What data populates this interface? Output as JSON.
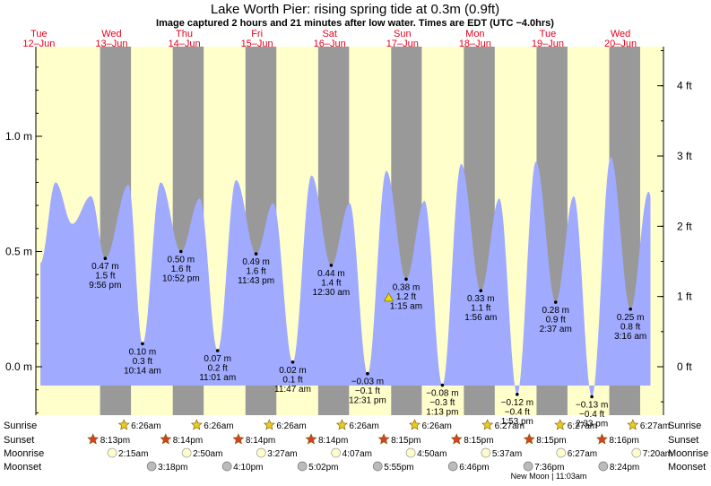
{
  "chart_data": {
    "type": "area",
    "title": "Lake Worth Pier: rising  spring tide at 0.3m (0.9ft)",
    "subtitle": "Image captured 2 hours and 21 minutes after low water. Times are EDT (UTC −4.0hrs)",
    "y_unit_left": "m",
    "y_unit_right": "ft",
    "ylim_m": [
      -0.4,
      1.37
    ],
    "left_ticks": [
      "0.0 m",
      "0.5 m",
      "1.0 m"
    ],
    "left_tick_values": [
      0,
      0.5,
      1.0
    ],
    "right_ticks": [
      "0 ft",
      "1 ft",
      "2 ft",
      "3 ft",
      "4 ft"
    ],
    "right_tick_values": [
      0,
      1,
      2,
      3,
      4
    ],
    "days": [
      {
        "dow": "Tue",
        "date": "12–Jun"
      },
      {
        "dow": "Wed",
        "date": "13–Jun"
      },
      {
        "dow": "Thu",
        "date": "14–Jun"
      },
      {
        "dow": "Fri",
        "date": "15–Jun"
      },
      {
        "dow": "Sat",
        "date": "16–Jun"
      },
      {
        "dow": "Sun",
        "date": "17–Jun"
      },
      {
        "dow": "Mon",
        "date": "18–Jun"
      },
      {
        "dow": "Tue",
        "date": "19–Jun"
      },
      {
        "dow": "Wed",
        "date": "20–Jun"
      }
    ],
    "x_range_hours_from_12jun_midnight": [
      -1.0,
      206.2
    ],
    "night_bands_hours": [
      [
        20.2,
        30.4
      ],
      [
        44.2,
        54.4
      ],
      [
        68.2,
        78.4
      ],
      [
        92.2,
        102.4
      ],
      [
        116.3,
        126.4
      ],
      [
        140.3,
        150.5
      ],
      [
        164.3,
        174.5
      ],
      [
        188.3,
        198.5
      ]
    ],
    "tide_extremes": [
      {
        "t": 5.5,
        "h": 0.8
      },
      {
        "t": 11.0,
        "h": 0.62
      },
      {
        "t": 17.2,
        "h": 0.74
      },
      {
        "t": 21.9,
        "h": 0.47,
        "label": [
          "0.47 m",
          "1.5 ft",
          "9:56 pm"
        ]
      },
      {
        "t": 29.6,
        "h": 0.79
      },
      {
        "t": 34.2,
        "h": 0.1,
        "label": [
          "0.10 m",
          "0.3 ft",
          "10:14 am"
        ]
      },
      {
        "t": 40.2,
        "h": 0.8
      },
      {
        "t": 46.9,
        "h": 0.5,
        "label": [
          "0.50 m",
          "1.6 ft",
          "10:52 pm"
        ]
      },
      {
        "t": 53.1,
        "h": 0.73
      },
      {
        "t": 59.0,
        "h": 0.07,
        "label": [
          "0.07 m",
          "0.2 ft",
          "11:01 am"
        ]
      },
      {
        "t": 65.1,
        "h": 0.81
      },
      {
        "t": 71.7,
        "h": 0.49,
        "label": [
          "0.49 m",
          "1.6 ft",
          "11:43 pm"
        ]
      },
      {
        "t": 77.4,
        "h": 0.71
      },
      {
        "t": 83.8,
        "h": 0.02,
        "label": [
          "0.02 m",
          "0.1 ft",
          "11:47 am"
        ]
      },
      {
        "t": 90.0,
        "h": 0.83
      },
      {
        "t": 96.5,
        "h": 0.44,
        "label": [
          "0.44 m",
          "1.4 ft",
          "12:30 am"
        ]
      },
      {
        "t": 102.6,
        "h": 0.71
      },
      {
        "t": 108.5,
        "h": -0.03,
        "label": [
          "−0.03 m",
          "−0.1 ft",
          "12:31 pm"
        ]
      },
      {
        "t": 114.7,
        "h": 0.85
      },
      {
        "t": 121.25,
        "h": 0.38,
        "label": [
          "0.38 m",
          "1.2 ft",
          "1:15 am"
        ]
      },
      {
        "t": 127.3,
        "h": 0.72
      },
      {
        "t": 133.2,
        "h": -0.08,
        "label": [
          "−0.08 m",
          "−0.3 ft",
          "1:13 pm"
        ]
      },
      {
        "t": 139.4,
        "h": 0.88
      },
      {
        "t": 145.9,
        "h": 0.33,
        "label": [
          "0.33 m",
          "1.1 ft",
          "1:56 am"
        ]
      },
      {
        "t": 152.0,
        "h": 0.73
      },
      {
        "t": 157.9,
        "h": -0.12,
        "label": [
          "−0.12 m",
          "−0.4 ft",
          "1:53 pm"
        ]
      },
      {
        "t": 164.1,
        "h": 0.89
      },
      {
        "t": 170.6,
        "h": 0.28,
        "label": [
          "0.28 m",
          "0.9 ft",
          "2:37 am"
        ]
      },
      {
        "t": 176.6,
        "h": 0.74
      },
      {
        "t": 182.55,
        "h": -0.13,
        "label": [
          "−0.13 m",
          "−0.4 ft",
          "2:33 pm"
        ]
      },
      {
        "t": 188.8,
        "h": 0.91
      },
      {
        "t": 195.3,
        "h": 0.25,
        "label": [
          "0.25 m",
          "0.8 ft",
          "3:16 am"
        ]
      },
      {
        "t": 201.3,
        "h": 0.76
      },
      {
        "t": 207.3,
        "h": -0.15
      }
    ],
    "tide_start": {
      "t": 0.5,
      "h": 0.45
    },
    "tide_end_t": 201.9,
    "current_marker": {
      "t": 115.5,
      "h": 0.3
    }
  },
  "almanac": {
    "row_labels": [
      "Sunrise",
      "Sunset",
      "Moonrise",
      "Moonset"
    ],
    "sunrise": [
      {
        "t": 30.43,
        "text": "6:26am"
      },
      {
        "t": 54.43,
        "text": "6:26am"
      },
      {
        "t": 78.43,
        "text": "6:26am"
      },
      {
        "t": 102.43,
        "text": "6:26am"
      },
      {
        "t": 126.43,
        "text": "6:26am"
      },
      {
        "t": 150.45,
        "text": "6:27am"
      },
      {
        "t": 174.45,
        "text": "6:27am"
      },
      {
        "t": 198.45,
        "text": "6:27am"
      }
    ],
    "sunset": [
      {
        "t": 20.22,
        "text": "8:13pm"
      },
      {
        "t": 44.23,
        "text": "8:14pm"
      },
      {
        "t": 68.23,
        "text": "8:14pm"
      },
      {
        "t": 92.23,
        "text": "8:14pm"
      },
      {
        "t": 116.25,
        "text": "8:15pm"
      },
      {
        "t": 140.25,
        "text": "8:15pm"
      },
      {
        "t": 164.25,
        "text": "8:15pm"
      },
      {
        "t": 188.27,
        "text": "8:16pm"
      }
    ],
    "moonrise": [
      {
        "t": 26.25,
        "text": "2:15am"
      },
      {
        "t": 50.83,
        "text": "2:50am"
      },
      {
        "t": 75.45,
        "text": "3:27am"
      },
      {
        "t": 100.12,
        "text": "4:07am"
      },
      {
        "t": 124.83,
        "text": "4:50am"
      },
      {
        "t": 149.62,
        "text": "5:37am"
      },
      {
        "t": 174.45,
        "text": "6:27am"
      },
      {
        "t": 199.33,
        "text": "7:20am"
      }
    ],
    "moonset": [
      {
        "t": 39.3,
        "text": "3:18pm"
      },
      {
        "t": 64.17,
        "text": "4:10pm"
      },
      {
        "t": 89.03,
        "text": "5:02pm"
      },
      {
        "t": 113.92,
        "text": "5:55pm"
      },
      {
        "t": 138.77,
        "text": "6:46pm"
      },
      {
        "t": 163.6,
        "text": "7:36pm"
      },
      {
        "t": 188.4,
        "text": "8:24pm"
      }
    ],
    "moon_phase_note": "New Moon | 11:03am"
  },
  "colors": {
    "day_bg": "#ffffcc",
    "night_bg": "#999999",
    "water": "#a0aaff",
    "date_text": "#e8001c",
    "sunrise_star": "#e8cc1e",
    "sunset_star": "#d84020",
    "moonrise_disc": "#fffccc",
    "moonset_disc": "#bbbbbb"
  }
}
